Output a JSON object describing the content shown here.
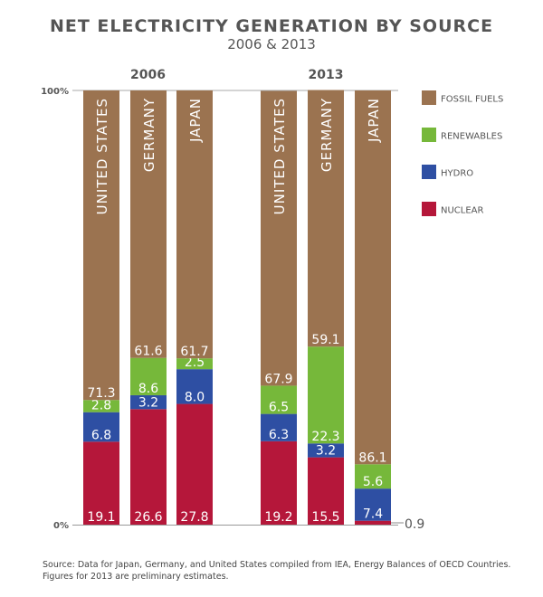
{
  "chart_data": {
    "type": "bar",
    "stacked": true,
    "normalized": true,
    "title": "NET ELECTRICITY GENERATION BY SOURCE",
    "subtitle": "2006 & 2013",
    "ylim": [
      0,
      100
    ],
    "ytick_labels": [
      "0%",
      "100%"
    ],
    "groups": [
      {
        "label": "2006",
        "categories": [
          "UNITED STATES",
          "GERMANY",
          "JAPAN"
        ]
      },
      {
        "label": "2013",
        "categories": [
          "UNITED STATES",
          "GERMANY",
          "JAPAN"
        ]
      }
    ],
    "series": [
      {
        "name": "NUCLEAR",
        "color": "#B5173A",
        "values": [
          19.1,
          26.6,
          27.8,
          19.2,
          15.5,
          0.9
        ]
      },
      {
        "name": "HYDRO",
        "color": "#2E4FA3",
        "values": [
          6.8,
          3.2,
          8.0,
          6.3,
          3.2,
          7.4
        ]
      },
      {
        "name": "RENEWABLES",
        "color": "#76B83A",
        "values": [
          2.8,
          8.6,
          2.5,
          6.5,
          22.3,
          5.6
        ]
      },
      {
        "name": "FOSSIL FUELS",
        "color": "#9B7350",
        "values": [
          71.3,
          61.6,
          61.7,
          67.9,
          59.1,
          86.1
        ]
      }
    ],
    "legend": {
      "position": "right",
      "order": [
        "FOSSIL FUELS",
        "RENEWABLES",
        "HYDRO",
        "NUCLEAR"
      ]
    },
    "annotations": [
      {
        "text": "0.9",
        "target": "JAPAN 2013 NUCLEAR",
        "style": "leader-line"
      }
    ]
  },
  "source_note": {
    "line1": "Source: Data for Japan, Germany, and United States compiled from IEA, Energy Balances of OECD Countries.",
    "line2": "Figures for 2013 are preliminary estimates."
  }
}
